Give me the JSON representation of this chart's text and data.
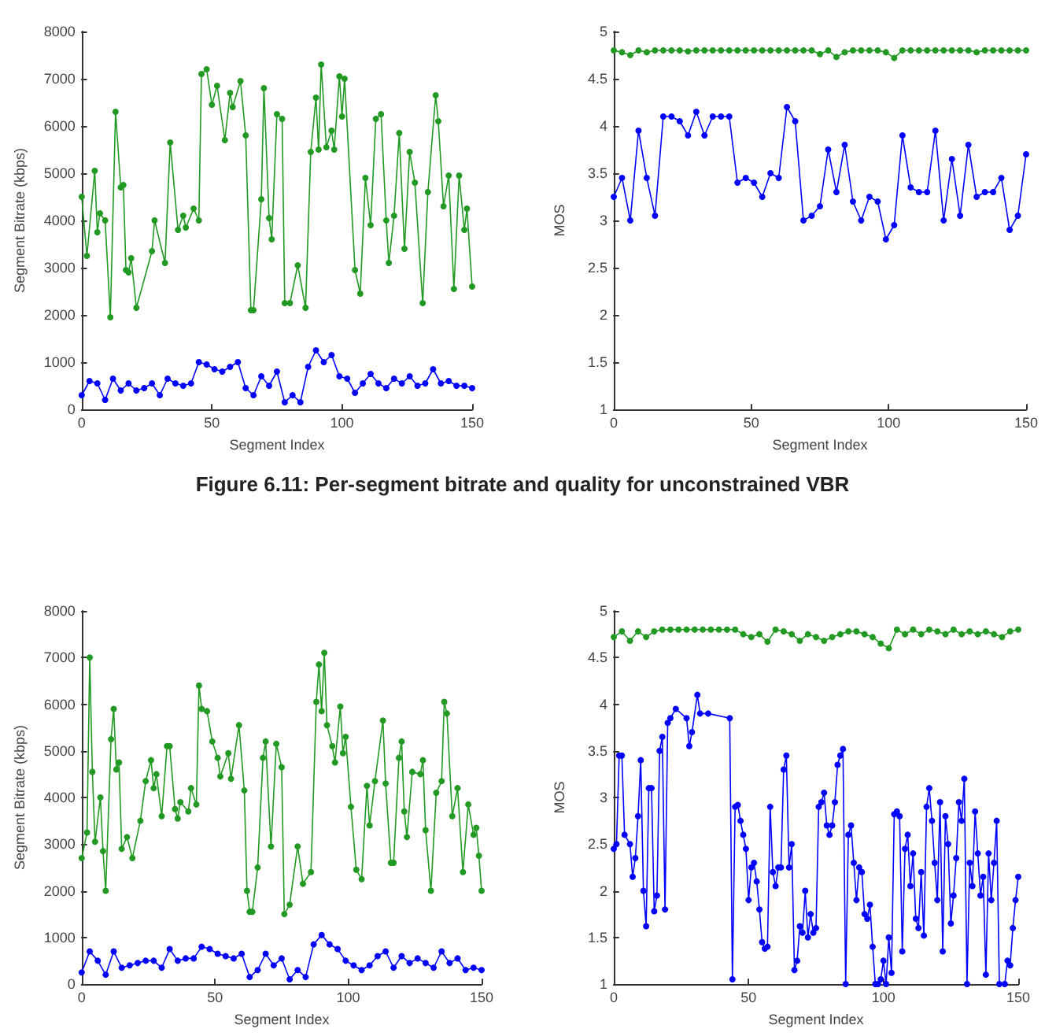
{
  "chart_data": [
    {
      "type": "line",
      "xlabel": "Segment Index",
      "ylabel": "Segment Bitrate (kbps)",
      "annotations": [
        "Figure 6.11: Per-segment bitrate and quality for unconstrained VBR"
      ],
      "xlim": [
        0,
        150
      ],
      "xticks": [
        0,
        50,
        100,
        150
      ],
      "ylim": [
        0,
        8000
      ],
      "yticks": [
        0,
        1000,
        2000,
        3000,
        4000,
        5000,
        6000,
        7000,
        8000
      ],
      "grid": false,
      "marker": "circle",
      "x": [
        0,
        3,
        6,
        9,
        12,
        15,
        18,
        21,
        24,
        27,
        30,
        33,
        36,
        39,
        42,
        45,
        48,
        51,
        54,
        57,
        60,
        63,
        66,
        69,
        72,
        75,
        78,
        81,
        84,
        87,
        90,
        93,
        96,
        99,
        102,
        105,
        108,
        111,
        114,
        117,
        120,
        123,
        126,
        129,
        132,
        135,
        138,
        141,
        144,
        147,
        150
      ],
      "series": [
        {
          "color": "#229922",
          "x": [
            0,
            2,
            5,
            6,
            7,
            9,
            11,
            13,
            15,
            16,
            17,
            18,
            19,
            21,
            27,
            28,
            32,
            34,
            37,
            39,
            40,
            43,
            45,
            46,
            48,
            50,
            52,
            55,
            57,
            58,
            61,
            63,
            65,
            66,
            69,
            70,
            72,
            73,
            75,
            77,
            78,
            80,
            83,
            86,
            88,
            90,
            91,
            92,
            94,
            96,
            97,
            99,
            100,
            101,
            105,
            107,
            109,
            111,
            113,
            115,
            117,
            118,
            120,
            122,
            124,
            126,
            128,
            131,
            133,
            136,
            137,
            139,
            141,
            143,
            145,
            147,
            148,
            150
          ],
          "values": [
            4500,
            3250,
            5050,
            3750,
            4150,
            4000,
            1950,
            6300,
            4700,
            4750,
            2950,
            2900,
            3200,
            2150,
            3350,
            4000,
            3100,
            5650,
            3800,
            4100,
            3850,
            4250,
            4000,
            7100,
            7200,
            6450,
            6850,
            5700,
            6700,
            6400,
            6950,
            5800,
            2100,
            2100,
            4450,
            6800,
            4050,
            3600,
            6250,
            6150,
            2250,
            2250,
            3050,
            2150,
            5450,
            6600,
            5500,
            7300,
            5550,
            5900,
            5500,
            7050,
            6200,
            7000,
            2950,
            2450,
            4900,
            3900,
            6150,
            6250,
            4000,
            3100,
            4100,
            5850,
            3400,
            5450,
            4800,
            2250,
            4600,
            6650,
            6100,
            4300,
            4950,
            2550,
            4950,
            3800,
            4250,
            2600
          ]
        },
        {
          "color": "#0000ff",
          "values": [
            300,
            600,
            550,
            200,
            650,
            400,
            550,
            400,
            450,
            550,
            300,
            650,
            550,
            500,
            550,
            1000,
            950,
            850,
            800,
            900,
            1000,
            450,
            300,
            700,
            500,
            800,
            150,
            300,
            150,
            900,
            1250,
            1000,
            1150,
            700,
            650,
            350,
            550,
            750,
            550,
            450,
            650,
            550,
            700,
            500,
            550,
            850,
            550,
            600,
            500,
            500,
            450
          ]
        }
      ]
    },
    {
      "type": "line",
      "xlabel": "Segment Index",
      "ylabel": "MOS",
      "xlim": [
        0,
        150
      ],
      "xticks": [
        0,
        50,
        100,
        150
      ],
      "ylim": [
        1,
        5
      ],
      "yticks": [
        1,
        1.5,
        2,
        2.5,
        3,
        3.5,
        4,
        4.5,
        5
      ],
      "grid": false,
      "marker": "circle",
      "x": [
        0,
        3,
        6,
        9,
        12,
        15,
        18,
        21,
        24,
        27,
        30,
        33,
        36,
        39,
        42,
        45,
        48,
        51,
        54,
        57,
        60,
        63,
        66,
        69,
        72,
        75,
        78,
        81,
        84,
        87,
        90,
        93,
        96,
        99,
        102,
        105,
        108,
        111,
        114,
        117,
        120,
        123,
        126,
        129,
        132,
        135,
        138,
        141,
        144,
        147,
        150
      ],
      "series": [
        {
          "color": "#229922",
          "values": [
            4.8,
            4.78,
            4.75,
            4.8,
            4.78,
            4.8,
            4.8,
            4.8,
            4.8,
            4.79,
            4.8,
            4.8,
            4.8,
            4.8,
            4.8,
            4.8,
            4.8,
            4.8,
            4.8,
            4.8,
            4.8,
            4.8,
            4.8,
            4.8,
            4.8,
            4.76,
            4.8,
            4.73,
            4.78,
            4.8,
            4.8,
            4.8,
            4.8,
            4.78,
            4.72,
            4.8,
            4.8,
            4.8,
            4.8,
            4.8,
            4.8,
            4.8,
            4.8,
            4.8,
            4.78,
            4.8,
            4.8,
            4.8,
            4.8,
            4.8,
            4.8
          ]
        },
        {
          "color": "#0000ff",
          "values": [
            3.25,
            3.45,
            3.0,
            3.95,
            3.45,
            3.05,
            4.1,
            4.1,
            4.05,
            3.9,
            4.15,
            3.9,
            4.1,
            4.1,
            4.1,
            3.4,
            3.45,
            3.4,
            3.25,
            3.5,
            3.45,
            4.2,
            4.05,
            3.0,
            3.05,
            3.15,
            3.75,
            3.3,
            3.8,
            3.2,
            3.0,
            3.25,
            3.2,
            2.8,
            2.95,
            3.9,
            3.35,
            3.3,
            3.3,
            3.95,
            3.0,
            3.65,
            3.05,
            3.8,
            3.25,
            3.3,
            3.3,
            3.45,
            2.9,
            3.05,
            3.7
          ]
        }
      ]
    },
    {
      "type": "line",
      "xlabel": "Segment Index",
      "ylabel": "Segment Bitrate (kbps)",
      "xlim": [
        0,
        150
      ],
      "xticks": [
        0,
        50,
        100,
        150
      ],
      "ylim": [
        0,
        8000
      ],
      "yticks": [
        0,
        1000,
        2000,
        3000,
        4000,
        5000,
        6000,
        7000,
        8000
      ],
      "grid": false,
      "marker": "circle",
      "x": [
        0,
        3,
        6,
        9,
        12,
        15,
        18,
        21,
        24,
        27,
        30,
        33,
        36,
        39,
        42,
        45,
        48,
        51,
        54,
        57,
        60,
        63,
        66,
        69,
        72,
        75,
        78,
        81,
        84,
        87,
        90,
        93,
        96,
        99,
        102,
        105,
        108,
        111,
        114,
        117,
        120,
        123,
        126,
        129,
        132,
        135,
        138,
        141,
        144,
        147,
        150
      ],
      "series": [
        {
          "color": "#229922",
          "x": [
            0,
            2,
            3,
            4,
            5,
            7,
            8,
            9,
            11,
            12,
            13,
            14,
            15,
            17,
            19,
            22,
            24,
            26,
            27,
            28,
            30,
            32,
            33,
            35,
            36,
            37,
            40,
            41,
            43,
            44,
            45,
            47,
            49,
            51,
            52,
            55,
            56,
            59,
            61,
            62,
            63,
            64,
            66,
            68,
            69,
            71,
            73,
            75,
            76,
            78,
            81,
            83,
            86,
            88,
            89,
            90,
            91,
            92,
            94,
            95,
            97,
            98,
            99,
            101,
            103,
            105,
            107,
            108,
            110,
            113,
            114,
            116,
            117,
            119,
            120,
            121,
            122,
            124,
            127,
            128,
            129,
            131,
            133,
            135,
            136,
            137,
            139,
            141,
            143,
            145,
            147,
            148,
            149,
            150
          ],
          "values": [
            2700,
            3250,
            7000,
            4550,
            3050,
            4000,
            2850,
            2000,
            5250,
            5900,
            4600,
            4750,
            2900,
            3150,
            2700,
            3500,
            4350,
            4800,
            4200,
            4500,
            3600,
            5100,
            5100,
            3750,
            3550,
            3900,
            3700,
            4200,
            3850,
            6400,
            5900,
            5850,
            5200,
            4850,
            4450,
            4950,
            4400,
            5550,
            4150,
            2000,
            1550,
            1550,
            2500,
            4850,
            5200,
            2950,
            5150,
            4650,
            1500,
            1700,
            2950,
            2150,
            2400,
            6050,
            6850,
            5850,
            7100,
            5550,
            5100,
            4750,
            5950,
            4950,
            5300,
            3800,
            2450,
            2250,
            4250,
            3400,
            4350,
            5650,
            4300,
            2600,
            2600,
            4850,
            5200,
            3700,
            3150,
            4550,
            4500,
            4800,
            3300,
            2000,
            4100,
            4350,
            6050,
            5800,
            3600,
            4200,
            2400,
            3850,
            3200,
            3350,
            2750,
            2000
          ]
        },
        {
          "color": "#0000ff",
          "values": [
            250,
            700,
            500,
            200,
            700,
            350,
            400,
            450,
            500,
            500,
            350,
            750,
            500,
            550,
            550,
            800,
            750,
            650,
            600,
            550,
            650,
            150,
            300,
            650,
            400,
            550,
            100,
            300,
            150,
            850,
            1050,
            850,
            750,
            500,
            400,
            300,
            400,
            600,
            700,
            350,
            600,
            450,
            550,
            450,
            350,
            700,
            450,
            550,
            300,
            350,
            300
          ]
        }
      ]
    },
    {
      "type": "line",
      "xlabel": "Segment Index",
      "ylabel": "MOS",
      "xlim": [
        0,
        150
      ],
      "xticks": [
        0,
        50,
        100,
        150
      ],
      "ylim": [
        1,
        5
      ],
      "yticks": [
        1,
        1.5,
        2,
        2.5,
        3,
        3.5,
        4,
        4.5,
        5
      ],
      "grid": false,
      "marker": "circle",
      "x": [
        0,
        3,
        6,
        9,
        12,
        15,
        18,
        21,
        24,
        27,
        30,
        33,
        36,
        39,
        42,
        45,
        48,
        51,
        54,
        57,
        60,
        63,
        66,
        69,
        72,
        75,
        78,
        81,
        84,
        87,
        90,
        93,
        96,
        99,
        102,
        105,
        108,
        111,
        114,
        117,
        120,
        123,
        126,
        129,
        132,
        135,
        138,
        141,
        144,
        147,
        150
      ],
      "series": [
        {
          "color": "#229922",
          "values": [
            4.72,
            4.78,
            4.68,
            4.78,
            4.72,
            4.78,
            4.8,
            4.8,
            4.8,
            4.8,
            4.8,
            4.8,
            4.8,
            4.8,
            4.8,
            4.8,
            4.75,
            4.72,
            4.75,
            4.67,
            4.8,
            4.78,
            4.75,
            4.68,
            4.75,
            4.72,
            4.68,
            4.72,
            4.75,
            4.78,
            4.78,
            4.75,
            4.72,
            4.65,
            4.6,
            4.8,
            4.75,
            4.8,
            4.75,
            4.8,
            4.78,
            4.75,
            4.8,
            4.75,
            4.78,
            4.75,
            4.78,
            4.75,
            4.72,
            4.78,
            4.8
          ]
        },
        {
          "color": "#0000ff",
          "x": [
            0,
            1,
            2,
            3,
            4,
            6,
            7,
            8,
            9,
            10,
            11,
            12,
            13,
            14,
            15,
            16,
            17,
            18,
            19,
            20,
            21,
            23,
            27,
            28,
            29,
            31,
            32,
            35,
            43,
            44,
            45,
            46,
            47,
            48,
            49,
            50,
            51,
            52,
            53,
            54,
            55,
            56,
            57,
            58,
            59,
            60,
            61,
            62,
            63,
            64,
            65,
            66,
            67,
            68,
            69,
            70,
            71,
            72,
            73,
            74,
            75,
            76,
            77,
            78,
            79,
            80,
            81,
            82,
            83,
            84,
            85,
            86,
            87,
            88,
            89,
            90,
            91,
            92,
            93,
            94,
            95,
            96,
            97,
            98,
            99,
            100,
            101,
            102,
            103,
            104,
            105,
            106,
            107,
            108,
            109,
            110,
            111,
            112,
            113,
            114,
            115,
            116,
            117,
            118,
            119,
            120,
            121,
            122,
            123,
            124,
            125,
            126,
            127,
            128,
            129,
            130,
            131,
            132,
            133,
            134,
            135,
            136,
            137,
            138,
            139,
            140,
            141,
            142,
            143,
            145,
            146,
            147,
            148,
            149,
            150
          ],
          "values": [
            2.45,
            2.5,
            3.45,
            3.45,
            2.6,
            2.5,
            2.15,
            2.35,
            2.8,
            3.4,
            2.0,
            1.62,
            3.1,
            3.1,
            1.78,
            1.95,
            3.5,
            3.65,
            1.8,
            3.8,
            3.85,
            3.95,
            3.85,
            3.55,
            3.7,
            4.1,
            3.9,
            3.9,
            3.85,
            1.05,
            2.9,
            2.92,
            2.75,
            2.6,
            2.45,
            1.9,
            2.25,
            2.3,
            2.1,
            1.8,
            1.45,
            1.38,
            1.4,
            2.9,
            2.2,
            2.05,
            2.25,
            2.25,
            3.3,
            3.45,
            2.25,
            2.5,
            1.15,
            1.25,
            1.62,
            1.55,
            2.0,
            1.5,
            1.75,
            1.55,
            1.6,
            2.9,
            2.95,
            3.05,
            2.7,
            2.6,
            2.7,
            2.95,
            3.35,
            3.45,
            3.52,
            1.0,
            2.6,
            2.7,
            2.3,
            1.9,
            2.25,
            2.2,
            1.75,
            1.7,
            1.85,
            1.4,
            1.0,
            1.0,
            1.05,
            1.25,
            1.0,
            1.5,
            1.12,
            2.82,
            2.85,
            2.8,
            1.35,
            2.45,
            2.6,
            2.05,
            2.4,
            1.7,
            1.6,
            2.2,
            1.52,
            2.9,
            3.1,
            2.75,
            2.3,
            1.9,
            2.95,
            1.35,
            2.8,
            2.5,
            1.65,
            1.95,
            2.35,
            2.95,
            2.75,
            3.2,
            1.0,
            2.3,
            2.05,
            2.85,
            2.4,
            1.95,
            2.15,
            1.1,
            2.4,
            1.9,
            2.3,
            2.75,
            1.0,
            1.0,
            1.25,
            1.2,
            1.6,
            1.9,
            2.15
          ]
        }
      ]
    }
  ]
}
